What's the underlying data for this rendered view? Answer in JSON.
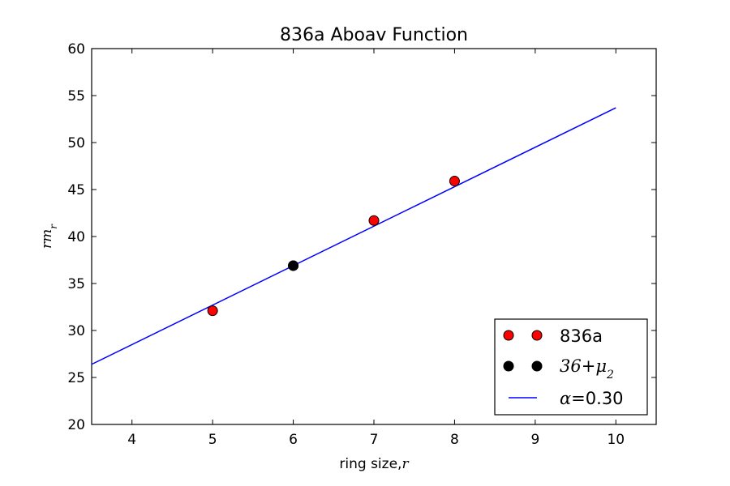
{
  "chart_data": {
    "type": "scatter",
    "title": "836a Aboav Function",
    "xlabel": "ring size,",
    "xlabel_math": "r",
    "ylabel_math": "rm",
    "ylabel_math_sub": "r",
    "xlim": [
      3.5,
      10.5
    ],
    "ylim": [
      20,
      60
    ],
    "xticks": [
      "4",
      "5",
      "6",
      "7",
      "8",
      "9",
      "10"
    ],
    "yticks": [
      "20",
      "25",
      "30",
      "35",
      "40",
      "45",
      "50",
      "55",
      "60"
    ],
    "grid": false,
    "legend_position": "lower-right",
    "series": [
      {
        "name": "836a",
        "kind": "points",
        "color": "#ff0000",
        "x": [
          5,
          6,
          7,
          8
        ],
        "y": [
          32.1,
          36.9,
          41.7,
          45.9
        ]
      },
      {
        "name": "36+μ",
        "name_sub": "2",
        "kind": "points",
        "color": "#000000",
        "x": [
          6
        ],
        "y": [
          36.9
        ]
      },
      {
        "name": "α=",
        "name_suffix": "0.30",
        "kind": "line",
        "color": "#0000ff",
        "x": [
          3.5,
          10
        ],
        "y": [
          26.4,
          53.7
        ]
      }
    ]
  }
}
